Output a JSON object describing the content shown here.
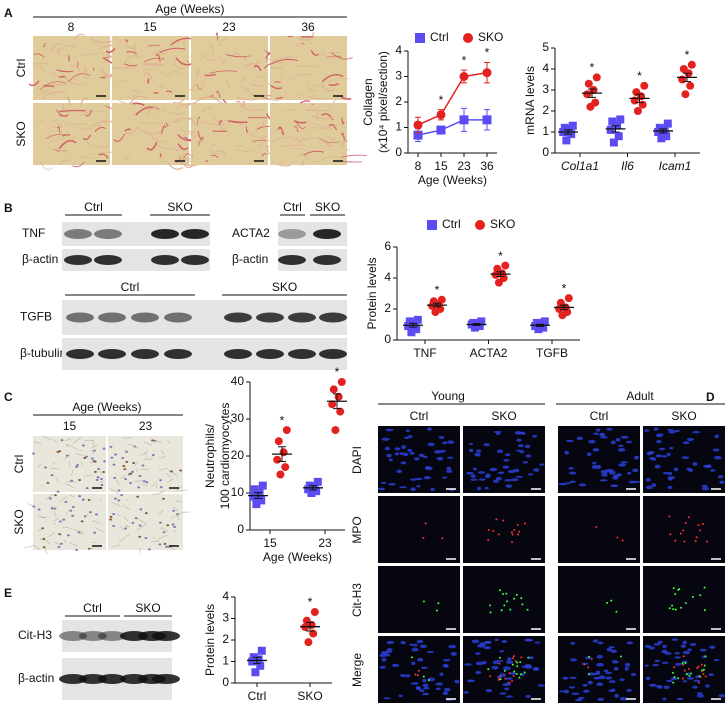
{
  "chart_data": [
    {
      "type": "line",
      "ylabel": [
        "Collagen",
        "(x10⁴ pixel/section)"
      ],
      "xlabel": "Age (Weeks)",
      "categories": [
        "8",
        "15",
        "23",
        "36"
      ],
      "ylim": [
        0,
        4
      ],
      "yticks": [
        0,
        1,
        2,
        3,
        4
      ],
      "legend": true,
      "significance_label": "*",
      "significant": [
        false,
        true,
        true,
        true
      ],
      "series": [
        {
          "name": "Ctrl",
          "color": "#5b4cf2",
          "marker": "square",
          "values": [
            0.7,
            0.9,
            1.3,
            1.3
          ],
          "errors": [
            0.25,
            0.15,
            0.45,
            0.4
          ]
        },
        {
          "name": "SKO",
          "color": "#e3211f",
          "marker": "circle",
          "values": [
            1.1,
            1.5,
            3.0,
            3.15
          ],
          "errors": [
            0.3,
            0.2,
            0.25,
            0.4
          ]
        }
      ]
    },
    {
      "type": "strip",
      "ylabel": [
        "mRNA levels"
      ],
      "categories": [
        "Col1a1",
        "Il6",
        "Icam1"
      ],
      "italic_categories": true,
      "ylim": [
        0,
        5
      ],
      "yticks": [
        0,
        1,
        2,
        3,
        4,
        5
      ],
      "legend": false,
      "significance_label": "*",
      "significant": [
        true,
        true,
        true
      ],
      "series": [
        {
          "color": "#5b4cf2",
          "marker": "square",
          "values": [
            [
              0.6,
              0.9,
              1.0,
              1.1,
              1.2,
              1.3
            ],
            [
              0.5,
              0.8,
              1.1,
              1.3,
              1.5,
              1.6
            ],
            [
              0.7,
              0.8,
              1.0,
              1.1,
              1.2,
              1.4
            ]
          ],
          "mean": [
            1.0,
            1.15,
            1.05
          ],
          "sem": [
            0.1,
            0.15,
            0.1
          ]
        },
        {
          "color": "#e3211f",
          "marker": "circle",
          "values": [
            [
              2.2,
              2.4,
              2.8,
              3.0,
              3.3,
              3.6
            ],
            [
              2.0,
              2.3,
              2.5,
              2.7,
              2.9,
              3.2
            ],
            [
              2.8,
              3.2,
              3.5,
              3.8,
              4.0,
              4.2
            ]
          ],
          "mean": [
            2.85,
            2.6,
            3.6
          ],
          "sem": [
            0.2,
            0.2,
            0.2
          ]
        }
      ]
    },
    {
      "type": "strip",
      "ylabel": [
        "Protein levels"
      ],
      "categories": [
        "TNF",
        "ACTA2",
        "TGFB"
      ],
      "italic_categories": false,
      "ylim": [
        0,
        6
      ],
      "yticks": [
        0,
        2,
        4,
        6
      ],
      "legend": true,
      "significance_label": "*",
      "significant": [
        true,
        true,
        true
      ],
      "series": [
        {
          "name": "Ctrl",
          "color": "#5b4cf2",
          "marker": "square",
          "values": [
            [
              0.5,
              0.7,
              0.9,
              1.0,
              1.2,
              1.3
            ],
            [
              0.8,
              0.9,
              1.0,
              1.0,
              1.1,
              1.2
            ],
            [
              0.7,
              0.8,
              0.9,
              1.0,
              1.1,
              1.2
            ]
          ],
          "mean": [
            0.95,
            1.0,
            0.95
          ],
          "sem": [
            0.12,
            0.06,
            0.07
          ]
        },
        {
          "name": "SKO",
          "color": "#e3211f",
          "marker": "circle",
          "values": [
            [
              1.8,
              2.0,
              2.2,
              2.3,
              2.5,
              2.6
            ],
            [
              3.7,
              4.0,
              4.2,
              4.3,
              4.6,
              4.8
            ],
            [
              1.6,
              1.8,
              2.0,
              2.1,
              2.4,
              2.7
            ]
          ],
          "mean": [
            2.25,
            4.25,
            2.1
          ],
          "sem": [
            0.12,
            0.15,
            0.15
          ]
        }
      ]
    },
    {
      "type": "strip",
      "ylabel": [
        "Neutrophils/",
        "100 cardiomyocytes"
      ],
      "xlabel": "Age (Weeks)",
      "categories": [
        "15",
        "23"
      ],
      "italic_categories": false,
      "ylim": [
        0,
        40
      ],
      "yticks": [
        0,
        10,
        20,
        30,
        40
      ],
      "legend": false,
      "significance_label": "*",
      "significant": [
        true,
        true
      ],
      "series": [
        {
          "color": "#5b4cf2",
          "marker": "square",
          "values": [
            [
              7,
              8,
              9,
              10,
              11,
              12
            ],
            [
              10,
              10.5,
              11,
              11.5,
              12,
              13
            ]
          ],
          "mean": [
            9.3,
            11.4
          ],
          "sem": [
            0.8,
            0.6
          ]
        },
        {
          "color": "#e3211f",
          "marker": "circle",
          "values": [
            [
              15,
              17,
              19,
              21,
              24,
              27
            ],
            [
              27,
              32,
              34,
              36,
              38,
              40
            ]
          ],
          "mean": [
            20.5,
            34.8
          ],
          "sem": [
            2,
            2
          ]
        }
      ]
    },
    {
      "type": "strip",
      "ylabel": [
        "Protein levels"
      ],
      "categories": [
        "Ctrl",
        "SKO"
      ],
      "italic_categories": false,
      "ylim": [
        0,
        4
      ],
      "yticks": [
        0,
        1,
        2,
        3,
        4
      ],
      "legend": false,
      "significance_label": "*",
      "significant": [
        false,
        true
      ],
      "series": [
        {
          "color": "#5b4cf2",
          "marker": "square",
          "values": [
            [
              0.5,
              0.8,
              1.0,
              1.1,
              1.2,
              1.5
            ],
            null
          ],
          "mean": [
            1.05,
            null
          ],
          "sem": [
            0.15,
            null
          ]
        },
        {
          "color": "#e3211f",
          "marker": "circle",
          "values": [
            null,
            [
              1.9,
              2.3,
              2.6,
              2.7,
              2.9,
              3.3
            ]
          ],
          "mean": [
            null,
            2.62
          ],
          "sem": [
            null,
            0.2
          ]
        }
      ]
    }
  ],
  "figure": {
    "panel_labels": [
      "A",
      "B",
      "C",
      "D",
      "E"
    ],
    "A": {
      "header": "Age (Weeks)",
      "columns": [
        "8",
        "15",
        "23",
        "36"
      ],
      "rows": [
        "Ctrl",
        "SKO"
      ]
    },
    "B": {
      "tnf_blot": {
        "groups": [
          "Ctrl",
          "SKO"
        ],
        "rows": [
          "TNF",
          "β-actin"
        ]
      },
      "acta2_blot": {
        "groups": [
          "Ctrl",
          "SKO"
        ],
        "rows": [
          "ACTA2",
          "β-actin"
        ]
      },
      "tgfb_blot": {
        "groups": [
          "Ctrl",
          "SKO"
        ],
        "rows": [
          "TGFB",
          "β-tubulin"
        ]
      }
    },
    "C": {
      "header": "Age (Weeks)",
      "columns": [
        "15",
        "23"
      ],
      "rows": [
        "Ctrl",
        "SKO"
      ]
    },
    "D": {
      "ages": [
        "Young",
        "Adult"
      ],
      "groups": [
        "Ctrl",
        "SKO",
        "Ctrl",
        "SKO"
      ],
      "rows": [
        "DAPI",
        "MPO",
        "Cit-H3",
        "Merge"
      ]
    },
    "E": {
      "blot": {
        "groups": [
          "Ctrl",
          "SKO"
        ],
        "rows": [
          "Cit-H3",
          "β-actin"
        ]
      }
    }
  }
}
